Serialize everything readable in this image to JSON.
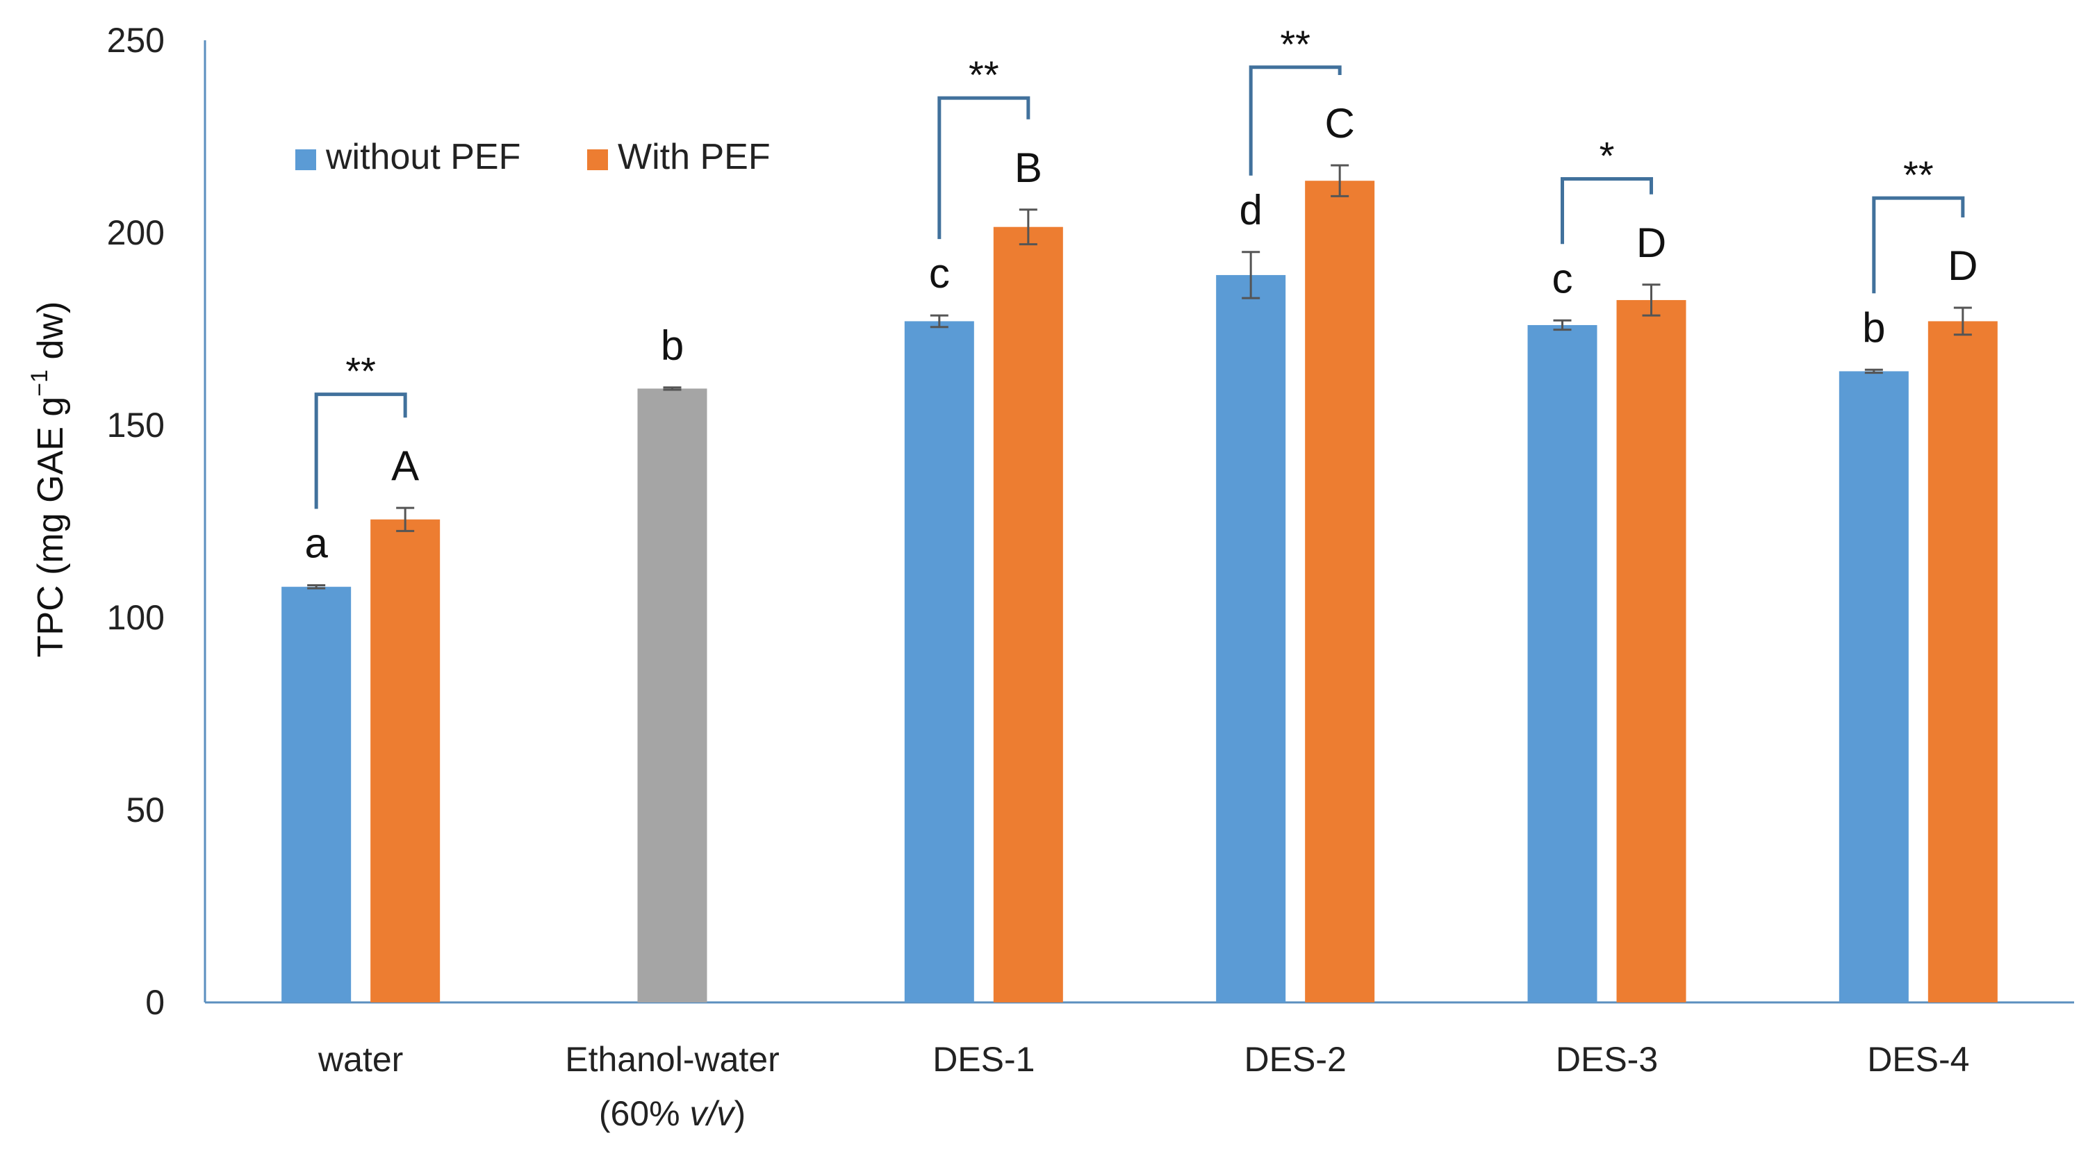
{
  "chart_data": {
    "type": "bar",
    "ylabel": "TPC (mg GAE g",
    "ylabel_sup": "−1",
    "ylabel_tail": " dw)",
    "ylim": [
      0,
      250
    ],
    "yticks": [
      0,
      50,
      100,
      150,
      200,
      250
    ],
    "categories": [
      {
        "label": "water",
        "sublabel": ""
      },
      {
        "label": "Ethanol-water",
        "sublabel_pre": "(60% ",
        "sublabel_italic": "v/v",
        "sublabel_post": ")"
      },
      {
        "label": "DES-1",
        "sublabel": ""
      },
      {
        "label": "DES-2",
        "sublabel": ""
      },
      {
        "label": "DES-3",
        "sublabel": ""
      },
      {
        "label": "DES-4",
        "sublabel": ""
      }
    ],
    "legend": [
      {
        "name": "without PEF",
        "color": "#5b9bd5"
      },
      {
        "name": "With PEF",
        "color": "#ed7d31"
      }
    ],
    "series": [
      {
        "name": "without PEF",
        "color": "#5b9bd5",
        "values": [
          108,
          null,
          177,
          189,
          176,
          164
        ],
        "errors": [
          0.4,
          null,
          1.5,
          6,
          1.2,
          0.4
        ],
        "letters": [
          "a",
          null,
          "c",
          "d",
          "c",
          "b"
        ]
      },
      {
        "name": "With PEF",
        "color": "#ed7d31",
        "values": [
          125.5,
          null,
          201.5,
          213.5,
          182.5,
          177
        ],
        "errors": [
          3,
          null,
          4.5,
          4,
          4,
          3.5
        ],
        "letters": [
          "A",
          null,
          "B",
          "C",
          "D",
          "D"
        ]
      },
      {
        "name": "Ethanol-water",
        "color": "#a5a5a5",
        "values": [
          null,
          159.5,
          null,
          null,
          null,
          null
        ],
        "errors": [
          null,
          0.3,
          null,
          null,
          null,
          null
        ],
        "letters": [
          null,
          "b",
          null,
          null,
          null,
          null
        ]
      }
    ],
    "significance": [
      {
        "category": 0,
        "label": "**",
        "level": 158
      },
      {
        "category": 2,
        "label": "**",
        "level": 235
      },
      {
        "category": 3,
        "label": "**",
        "level": 243
      },
      {
        "category": 4,
        "label": "*",
        "level": 214
      },
      {
        "category": 5,
        "label": "**",
        "level": 209
      }
    ]
  }
}
